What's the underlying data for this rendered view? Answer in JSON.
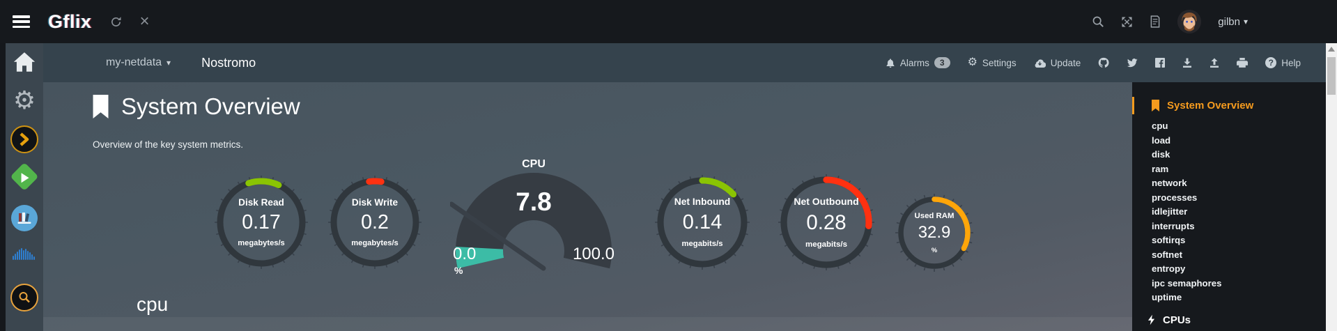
{
  "titlebar": {
    "brand": "Gflix",
    "username": "gilbn"
  },
  "navbar": {
    "server_selector_label": "my-netdata",
    "hostname": "Nostromo",
    "alarms_label": "Alarms",
    "alarms_badge": "3",
    "settings_label": "Settings",
    "update_label": "Update",
    "help_label": "Help"
  },
  "icons": {
    "gear_glyph": "⚙",
    "caret_glyph": "▾",
    "close_glyph": "×",
    "help_glyph": "?"
  },
  "page": {
    "section_title": "System Overview",
    "section_subtitle": "Overview of the key system metrics.",
    "subsection_heading": "cpu"
  },
  "section_menu": {
    "active_label": "System Overview",
    "items": [
      "cpu",
      "load",
      "disk",
      "ram",
      "network",
      "processes",
      "idlejitter",
      "interrupts",
      "softirqs",
      "softnet",
      "entropy",
      "ipc semaphores",
      "uptime"
    ],
    "next_section": "CPUs"
  },
  "chart_data": [
    {
      "type": "easypiechart",
      "title": "Disk Read",
      "value": "0.17",
      "units": "megabytes/s",
      "color": "#8ac403",
      "fill_start_deg": -18,
      "fill_end_deg": 25
    },
    {
      "type": "easypiechart",
      "title": "Disk Write",
      "value": "0.2",
      "units": "megabytes/s",
      "color": "#ff3111",
      "fill_start_deg": -8,
      "fill_end_deg": 9
    },
    {
      "type": "gauge",
      "title": "CPU",
      "value": "7.8",
      "min": "0.0",
      "max": "100.0",
      "units": "%",
      "value_num": 7.8,
      "range": [
        0,
        100
      ],
      "color": "#3cbca6"
    },
    {
      "type": "easypiechart",
      "title": "Net Inbound",
      "value": "0.14",
      "units": "megabits/s",
      "color": "#8ac403",
      "fill_start_deg": 0,
      "fill_end_deg": 48
    },
    {
      "type": "easypiechart",
      "title": "Net Outbound",
      "value": "0.28",
      "units": "megabits/s",
      "color": "#ff3111",
      "fill_start_deg": 0,
      "fill_end_deg": 95
    },
    {
      "type": "easypiechart",
      "title": "Used RAM",
      "value": "32.9",
      "units": "%",
      "color": "#ffa60a",
      "fill_start_deg": 0,
      "fill_end_deg": 118
    }
  ]
}
